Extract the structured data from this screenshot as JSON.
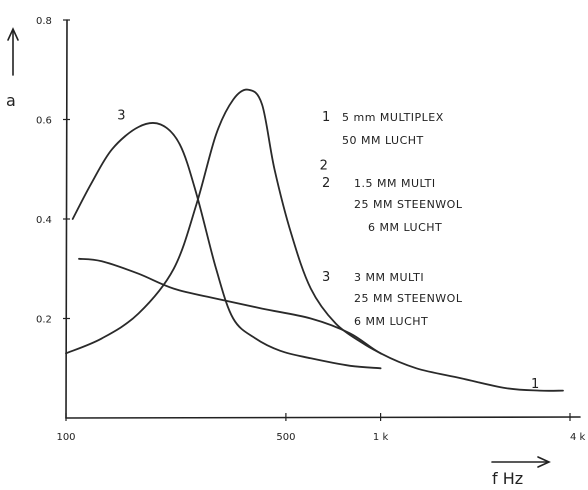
{
  "chart_data": {
    "type": "line",
    "xlabel": "f  Hz",
    "ylabel": "a",
    "x_scale": "log",
    "xlim": [
      100,
      4000
    ],
    "ylim": [
      0,
      0.8
    ],
    "x_ticks": [
      {
        "value": 100,
        "label": "100"
      },
      {
        "value": 500,
        "label": "500"
      },
      {
        "value": 1000,
        "label": "1 k"
      },
      {
        "value": 4000,
        "label": "4 k"
      }
    ],
    "y_ticks": [
      {
        "value": 0.2,
        "label": "0.2"
      },
      {
        "value": 0.4,
        "label": "0.4"
      },
      {
        "value": 0.6,
        "label": "0.6"
      },
      {
        "value": 0.8,
        "label": "0.8"
      }
    ],
    "grid": false,
    "series": [
      {
        "name": "1",
        "legend": [
          "5 mm MULTIPLEX",
          "50 MM LUCHT"
        ],
        "x": [
          110,
          130,
          170,
          220,
          300,
          420,
          600,
          800,
          1000,
          1300,
          1800,
          2500,
          3200,
          3800
        ],
        "y": [
          0.32,
          0.315,
          0.29,
          0.26,
          0.24,
          0.22,
          0.2,
          0.17,
          0.13,
          0.1,
          0.08,
          0.06,
          0.055,
          0.055
        ]
      },
      {
        "name": "2",
        "legend": [
          "1.5 MM MULTI",
          "25 MM STEENWOL",
          "6 MM LUCHT"
        ],
        "x": [
          100,
          130,
          170,
          220,
          260,
          300,
          340,
          380,
          420,
          460,
          520,
          600,
          720,
          880,
          1000
        ],
        "y": [
          0.13,
          0.16,
          0.21,
          0.3,
          0.43,
          0.57,
          0.64,
          0.66,
          0.63,
          0.5,
          0.37,
          0.26,
          0.19,
          0.15,
          0.13
        ]
      },
      {
        "name": "3",
        "legend": [
          "3 MM MULTI",
          "25 MM STEENWOL",
          "6 MM LUCHT"
        ],
        "x": [
          105,
          120,
          140,
          170,
          200,
          230,
          260,
          300,
          340,
          400,
          480,
          600,
          800,
          1000
        ],
        "y": [
          0.4,
          0.47,
          0.54,
          0.585,
          0.59,
          0.55,
          0.45,
          0.3,
          0.2,
          0.16,
          0.135,
          0.12,
          0.105,
          0.1
        ]
      }
    ],
    "curve_labels": [
      {
        "series": "1",
        "x": 3100,
        "y": 0.06
      },
      {
        "series": "2",
        "x": 660,
        "y": 0.5
      },
      {
        "series": "3",
        "x": 150,
        "y": 0.6
      }
    ]
  }
}
